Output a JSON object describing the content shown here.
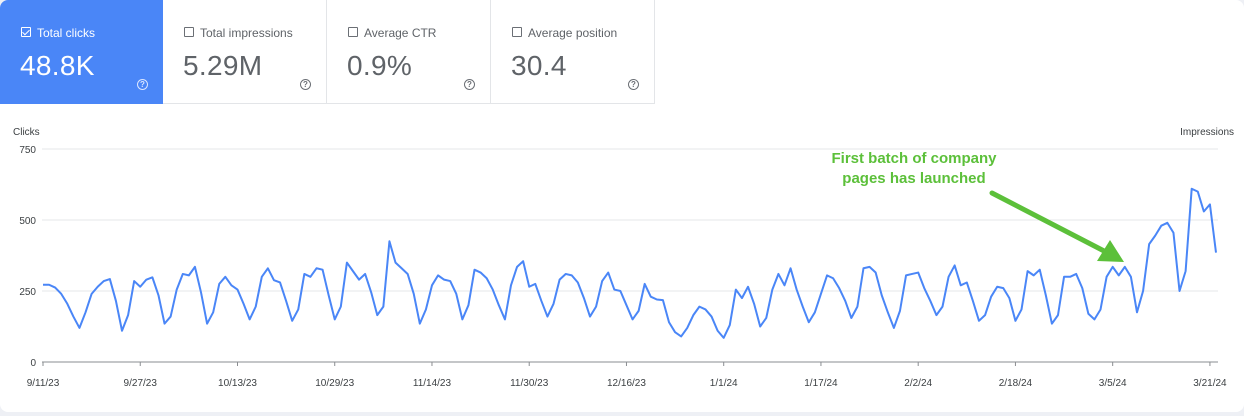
{
  "metrics": [
    {
      "label": "Total clicks",
      "value": "48.8K",
      "active": true
    },
    {
      "label": "Total impressions",
      "value": "5.29M",
      "active": false
    },
    {
      "label": "Average CTR",
      "value": "0.9%",
      "active": false
    },
    {
      "label": "Average position",
      "value": "30.4",
      "active": false
    }
  ],
  "help_glyph": "?",
  "annotation": {
    "line1": "First batch of company",
    "line2": "pages has launched",
    "color": "#5cc03a"
  },
  "colors": {
    "accent": "#4a86f7",
    "line": "#4a86f7"
  },
  "chart_data": {
    "type": "line",
    "ylabel": "Clicks",
    "y2label": "Impressions",
    "ylim": [
      0,
      750
    ],
    "yticks": [
      0,
      250,
      500,
      750
    ],
    "xtick_labels": [
      "9/11/23",
      "9/27/23",
      "10/13/23",
      "10/29/23",
      "11/14/23",
      "11/30/23",
      "12/16/23",
      "1/1/24",
      "1/17/24",
      "2/2/24",
      "2/18/24",
      "3/5/24",
      "3/21/24"
    ],
    "x_start": "2023-09-11",
    "series": [
      {
        "values": [
          272,
          272,
          262,
          240,
          205,
          160,
          120,
          175,
          240,
          265,
          285,
          292,
          215,
          110,
          165,
          285,
          265,
          290,
          298,
          235,
          135,
          160,
          255,
          310,
          305,
          335,
          245,
          135,
          175,
          275,
          300,
          270,
          255,
          205,
          150,
          195,
          300,
          330,
          288,
          280,
          215,
          145,
          185,
          310,
          300,
          330,
          325,
          235,
          150,
          195,
          350,
          320,
          290,
          310,
          245,
          165,
          195,
          425,
          350,
          330,
          310,
          240,
          135,
          185,
          270,
          305,
          290,
          285,
          240,
          150,
          200,
          325,
          315,
          295,
          255,
          200,
          150,
          270,
          335,
          355,
          265,
          275,
          215,
          160,
          205,
          290,
          310,
          305,
          280,
          225,
          160,
          195,
          285,
          315,
          255,
          250,
          200,
          150,
          180,
          275,
          230,
          220,
          218,
          140,
          105,
          90,
          120,
          165,
          195,
          185,
          160,
          110,
          85,
          130,
          255,
          225,
          265,
          205,
          125,
          155,
          255,
          310,
          270,
          330,
          255,
          195,
          140,
          175,
          240,
          305,
          295,
          260,
          215,
          155,
          195,
          330,
          335,
          315,
          235,
          175,
          120,
          180,
          305,
          310,
          315,
          260,
          215,
          165,
          195,
          300,
          340,
          270,
          280,
          215,
          145,
          165,
          230,
          265,
          260,
          225,
          145,
          185,
          320,
          305,
          325,
          235,
          135,
          165,
          300,
          300,
          310,
          260,
          170,
          150,
          185,
          300,
          335,
          305,
          335,
          300,
          175,
          250,
          415,
          445,
          480,
          490,
          455,
          250,
          320,
          610,
          600,
          530,
          555,
          385
        ]
      }
    ]
  }
}
